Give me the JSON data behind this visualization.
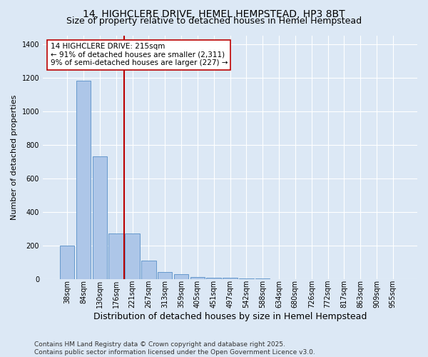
{
  "title": "14, HIGHCLERE DRIVE, HEMEL HEMPSTEAD, HP3 8BT",
  "subtitle": "Size of property relative to detached houses in Hemel Hempstead",
  "xlabel": "Distribution of detached houses by size in Hemel Hempstead",
  "ylabel": "Number of detached properties",
  "categories": [
    "38sqm",
    "84sqm",
    "130sqm",
    "176sqm",
    "221sqm",
    "267sqm",
    "313sqm",
    "359sqm",
    "405sqm",
    "451sqm",
    "497sqm",
    "542sqm",
    "588sqm",
    "634sqm",
    "680sqm",
    "726sqm",
    "772sqm",
    "817sqm",
    "863sqm",
    "909sqm",
    "955sqm"
  ],
  "values": [
    197,
    1180,
    730,
    270,
    270,
    110,
    40,
    30,
    10,
    5,
    5,
    3,
    3,
    0,
    0,
    0,
    0,
    0,
    0,
    0,
    0
  ],
  "bar_color": "#adc6e8",
  "bar_edge_color": "#6699cc",
  "vline_color": "#bb0000",
  "vline_x": 3.5,
  "annotation_text": "14 HIGHCLERE DRIVE: 215sqm\n← 91% of detached houses are smaller (2,311)\n9% of semi-detached houses are larger (227) →",
  "annotation_box_facecolor": "white",
  "annotation_box_edgecolor": "#bb0000",
  "footer": "Contains HM Land Registry data © Crown copyright and database right 2025.\nContains public sector information licensed under the Open Government Licence v3.0.",
  "ylim": [
    0,
    1450
  ],
  "yticks": [
    0,
    200,
    400,
    600,
    800,
    1000,
    1200,
    1400
  ],
  "bg_color": "#dce8f5",
  "plot_bg_color": "#dce8f5",
  "grid_color": "white",
  "title_fontsize": 10,
  "subtitle_fontsize": 9,
  "xlabel_fontsize": 9,
  "ylabel_fontsize": 8,
  "tick_fontsize": 7,
  "annotation_fontsize": 7.5,
  "footer_fontsize": 6.5
}
